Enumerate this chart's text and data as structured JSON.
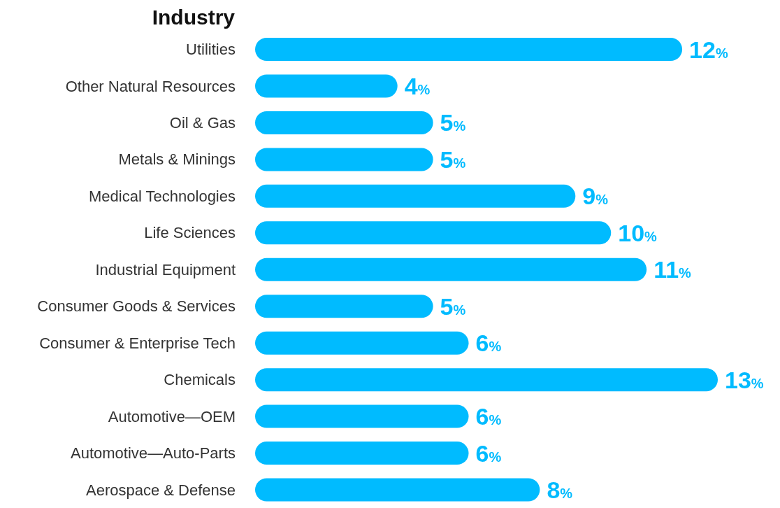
{
  "chart_data": {
    "type": "bar",
    "orientation": "horizontal",
    "title": "Industry",
    "categories": [
      "Utilities",
      "Other Natural Resources",
      "Oil & Gas",
      "Metals & Minings",
      "Medical Technologies",
      "Life Sciences",
      "Industrial Equipment",
      "Consumer Goods & Services",
      "Consumer & Enterprise Tech",
      "Chemicals",
      "Automotive—OEM",
      "Automotive—Auto-Parts",
      "Aerospace & Defense"
    ],
    "values": [
      12,
      4,
      5,
      5,
      9,
      10,
      11,
      5,
      6,
      13,
      6,
      6,
      8
    ],
    "value_labels": [
      "12%",
      "4%",
      "5%",
      "5%",
      "9%",
      "10%",
      "11%",
      "5%",
      "6%",
      "13%",
      "6%",
      "6%",
      "8%"
    ],
    "color": "#00bbff"
  }
}
